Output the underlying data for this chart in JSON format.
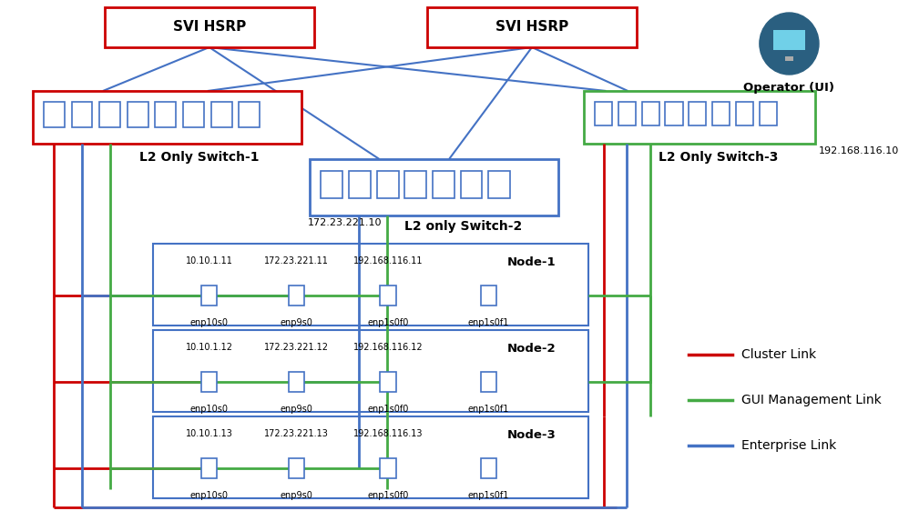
{
  "red": "#cc0000",
  "green": "#44aa44",
  "blue": "#4472c4",
  "blum": "#4472c4",
  "legend": [
    {
      "color": "#cc0000",
      "label": "Cluster Link"
    },
    {
      "color": "#44aa44",
      "label": "GUI Management Link"
    },
    {
      "color": "#4472c4",
      "label": "Enterprise Link"
    }
  ]
}
